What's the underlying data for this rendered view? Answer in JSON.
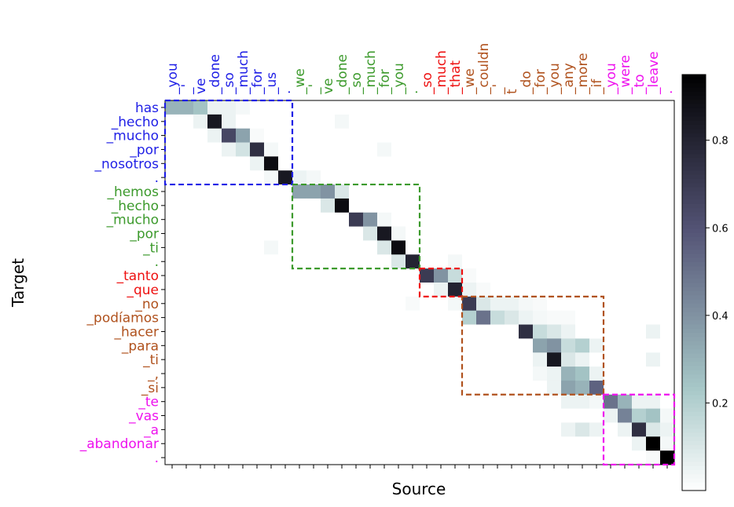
{
  "chart_data": {
    "type": "heatmap",
    "xlabel": "Source",
    "ylabel": "Target",
    "x": [
      "_you",
      "_'",
      "ve",
      "_done",
      "_so",
      "_much",
      "_for",
      "_us",
      ".",
      "_we",
      "_'",
      "ve",
      "_done",
      "_so",
      "_much",
      "_for",
      "_you",
      ".",
      "_so",
      "_much",
      "_that",
      "_we",
      "_couldn",
      "_'",
      "t",
      "_do",
      "_for",
      "_you",
      "_any",
      "_more",
      "_if",
      "_you",
      "_were",
      "_to",
      "_leave",
      "."
    ],
    "y": [
      "has",
      "_hecho",
      "_mucho",
      "_por",
      "_nosotros",
      ".",
      "_hemos",
      "_hecho",
      "_mucho",
      "_por",
      "_ti",
      ".",
      "_tanto",
      "_que",
      "_no",
      "_podíamos",
      "_hacer",
      "_para",
      "_ti",
      "_,",
      "_si",
      "_te",
      "_vas",
      "_a",
      "_abandonar",
      "."
    ],
    "z": [
      [
        0.3,
        0.3,
        0.25,
        0.05,
        0.05,
        0.03,
        0,
        0,
        0,
        0,
        0,
        0,
        0,
        0,
        0,
        0,
        0,
        0,
        0,
        0,
        0,
        0,
        0,
        0,
        0,
        0,
        0,
        0,
        0,
        0,
        0,
        0,
        0,
        0,
        0,
        0
      ],
      [
        0,
        0,
        0.05,
        0.85,
        0.05,
        0,
        0,
        0,
        0,
        0,
        0,
        0,
        0.03,
        0,
        0,
        0,
        0,
        0,
        0,
        0,
        0,
        0,
        0,
        0,
        0,
        0,
        0,
        0,
        0,
        0,
        0,
        0,
        0,
        0,
        0,
        0
      ],
      [
        0,
        0,
        0,
        0.05,
        0.65,
        0.35,
        0.02,
        0,
        0,
        0,
        0,
        0,
        0,
        0,
        0,
        0,
        0,
        0,
        0,
        0,
        0,
        0,
        0,
        0,
        0,
        0,
        0,
        0,
        0,
        0,
        0,
        0,
        0,
        0,
        0,
        0
      ],
      [
        0,
        0,
        0,
        0,
        0.05,
        0.12,
        0.75,
        0.03,
        0,
        0,
        0,
        0,
        0,
        0,
        0,
        0.03,
        0,
        0,
        0,
        0,
        0,
        0,
        0,
        0,
        0,
        0,
        0,
        0,
        0,
        0,
        0,
        0,
        0,
        0,
        0,
        0
      ],
      [
        0,
        0,
        0,
        0,
        0,
        0,
        0.05,
        0.9,
        0,
        0,
        0,
        0,
        0,
        0,
        0,
        0,
        0,
        0,
        0,
        0,
        0,
        0,
        0,
        0,
        0,
        0,
        0,
        0,
        0,
        0,
        0,
        0,
        0,
        0,
        0,
        0
      ],
      [
        0,
        0,
        0,
        0,
        0,
        0,
        0,
        0.03,
        0.85,
        0.05,
        0.03,
        0,
        0,
        0,
        0,
        0,
        0,
        0,
        0,
        0,
        0,
        0,
        0,
        0,
        0,
        0,
        0,
        0,
        0,
        0,
        0,
        0,
        0,
        0,
        0,
        0
      ],
      [
        0,
        0,
        0,
        0,
        0,
        0,
        0,
        0,
        0,
        0.35,
        0.35,
        0.4,
        0.1,
        0,
        0,
        0,
        0,
        0,
        0,
        0,
        0,
        0,
        0,
        0,
        0,
        0,
        0,
        0,
        0,
        0,
        0,
        0,
        0,
        0,
        0,
        0
      ],
      [
        0,
        0,
        0,
        0,
        0,
        0,
        0,
        0,
        0,
        0,
        0,
        0.1,
        0.9,
        0,
        0,
        0,
        0,
        0,
        0,
        0,
        0,
        0,
        0,
        0,
        0,
        0,
        0,
        0,
        0,
        0,
        0,
        0,
        0,
        0,
        0,
        0
      ],
      [
        0,
        0,
        0,
        0,
        0,
        0,
        0,
        0,
        0,
        0,
        0,
        0,
        0,
        0.7,
        0.4,
        0.03,
        0,
        0,
        0,
        0,
        0,
        0,
        0,
        0,
        0,
        0,
        0,
        0,
        0,
        0,
        0,
        0,
        0,
        0,
        0,
        0
      ],
      [
        0,
        0,
        0,
        0,
        0,
        0,
        0,
        0,
        0,
        0,
        0,
        0,
        0,
        0,
        0.1,
        0.85,
        0.03,
        0,
        0,
        0,
        0,
        0,
        0,
        0,
        0,
        0,
        0,
        0,
        0,
        0,
        0,
        0,
        0,
        0,
        0,
        0
      ],
      [
        0,
        0,
        0,
        0,
        0,
        0,
        0,
        0.03,
        0,
        0,
        0,
        0,
        0,
        0,
        0,
        0.1,
        0.9,
        0,
        0,
        0,
        0,
        0,
        0,
        0,
        0,
        0,
        0,
        0,
        0,
        0,
        0,
        0,
        0,
        0,
        0,
        0
      ],
      [
        0,
        0,
        0,
        0,
        0,
        0,
        0,
        0,
        0,
        0,
        0,
        0,
        0,
        0,
        0,
        0,
        0.1,
        0.8,
        0,
        0,
        0.03,
        0,
        0,
        0,
        0,
        0,
        0,
        0,
        0,
        0,
        0,
        0,
        0,
        0,
        0,
        0
      ],
      [
        0,
        0,
        0,
        0,
        0,
        0,
        0,
        0,
        0,
        0,
        0,
        0,
        0,
        0,
        0,
        0,
        0,
        0,
        0.7,
        0.4,
        0.15,
        0.02,
        0,
        0,
        0,
        0,
        0,
        0,
        0,
        0,
        0,
        0,
        0,
        0,
        0,
        0
      ],
      [
        0,
        0,
        0,
        0,
        0,
        0,
        0,
        0,
        0,
        0,
        0,
        0,
        0,
        0,
        0,
        0,
        0,
        0,
        0,
        0.05,
        0.8,
        0.05,
        0.02,
        0,
        0,
        0,
        0,
        0,
        0,
        0,
        0,
        0,
        0,
        0,
        0,
        0
      ],
      [
        0,
        0,
        0,
        0,
        0,
        0,
        0,
        0,
        0,
        0,
        0,
        0,
        0,
        0,
        0,
        0,
        0,
        0.02,
        0,
        0,
        0.03,
        0.7,
        0.1,
        0.05,
        0.05,
        0.03,
        0.02,
        0,
        0,
        0,
        0,
        0,
        0,
        0,
        0,
        0
      ],
      [
        0,
        0,
        0,
        0,
        0,
        0,
        0,
        0,
        0,
        0,
        0,
        0,
        0,
        0,
        0,
        0,
        0,
        0,
        0,
        0,
        0,
        0.2,
        0.5,
        0.15,
        0.1,
        0.05,
        0.03,
        0.02,
        0.02,
        0,
        0,
        0,
        0,
        0,
        0,
        0
      ],
      [
        0,
        0,
        0,
        0,
        0,
        0,
        0,
        0,
        0,
        0,
        0,
        0,
        0,
        0,
        0,
        0,
        0,
        0,
        0,
        0,
        0,
        0,
        0,
        0,
        0,
        0.75,
        0.15,
        0.1,
        0.05,
        0,
        0,
        0,
        0,
        0,
        0.05,
        0
      ],
      [
        0,
        0,
        0,
        0,
        0,
        0,
        0,
        0,
        0,
        0,
        0,
        0,
        0,
        0,
        0,
        0,
        0,
        0,
        0,
        0,
        0,
        0,
        0,
        0,
        0,
        0,
        0.35,
        0.4,
        0.15,
        0.2,
        0.05,
        0,
        0,
        0,
        0,
        0
      ],
      [
        0,
        0,
        0,
        0,
        0,
        0,
        0,
        0,
        0,
        0,
        0,
        0,
        0,
        0,
        0,
        0,
        0,
        0,
        0,
        0,
        0,
        0,
        0,
        0,
        0,
        0,
        0.05,
        0.85,
        0.1,
        0.05,
        0,
        0,
        0,
        0,
        0.05,
        0
      ],
      [
        0,
        0,
        0,
        0,
        0,
        0,
        0,
        0,
        0,
        0,
        0,
        0,
        0,
        0,
        0,
        0,
        0,
        0,
        0,
        0,
        0,
        0,
        0,
        0,
        0,
        0,
        0.03,
        0.05,
        0.3,
        0.25,
        0.05,
        0,
        0,
        0,
        0,
        0
      ],
      [
        0,
        0,
        0,
        0,
        0,
        0,
        0,
        0,
        0,
        0,
        0,
        0,
        0,
        0,
        0,
        0,
        0,
        0,
        0,
        0,
        0,
        0,
        0,
        0,
        0,
        0,
        0,
        0.05,
        0.35,
        0.3,
        0.55,
        0,
        0,
        0,
        0,
        0
      ],
      [
        0,
        0,
        0,
        0,
        0,
        0,
        0,
        0,
        0,
        0,
        0,
        0,
        0,
        0,
        0,
        0,
        0,
        0,
        0,
        0,
        0,
        0,
        0,
        0,
        0,
        0,
        0,
        0,
        0.05,
        0.05,
        0.03,
        0.5,
        0.3,
        0.05,
        0.05,
        0
      ],
      [
        0,
        0,
        0,
        0,
        0,
        0,
        0,
        0,
        0,
        0,
        0,
        0,
        0,
        0,
        0,
        0,
        0,
        0,
        0,
        0,
        0,
        0,
        0,
        0,
        0,
        0,
        0,
        0,
        0,
        0,
        0,
        0.05,
        0.45,
        0.2,
        0.25,
        0.03
      ],
      [
        0,
        0,
        0,
        0,
        0,
        0,
        0,
        0,
        0,
        0,
        0,
        0,
        0,
        0,
        0,
        0,
        0,
        0,
        0,
        0,
        0,
        0,
        0,
        0,
        0,
        0,
        0,
        0,
        0.05,
        0.1,
        0.05,
        0,
        0.05,
        0.75,
        0.1,
        0.05
      ],
      [
        0,
        0,
        0,
        0,
        0,
        0,
        0,
        0,
        0,
        0,
        0,
        0,
        0,
        0,
        0,
        0,
        0,
        0,
        0,
        0,
        0,
        0,
        0,
        0,
        0,
        0,
        0,
        0,
        0,
        0,
        0,
        0,
        0,
        0.05,
        0.95,
        0.03
      ],
      [
        0,
        0,
        0,
        0,
        0,
        0,
        0,
        0,
        0,
        0,
        0,
        0,
        0,
        0,
        0,
        0,
        0,
        0,
        0,
        0,
        0,
        0,
        0,
        0,
        0,
        0,
        0,
        0,
        0,
        0,
        0,
        0,
        0,
        0,
        0.02,
        0.95
      ]
    ],
    "clim": [
      0,
      0.95
    ],
    "cticks": [
      0.2,
      0.4,
      0.6,
      0.8
    ],
    "colormap": "bone_r",
    "groups": [
      {
        "color": "#1f1fe6",
        "rows": [
          0,
          5
        ],
        "cols": [
          0,
          8
        ]
      },
      {
        "color": "#3c9a2c",
        "rows": [
          6,
          11
        ],
        "cols": [
          9,
          17
        ]
      },
      {
        "color": "#ee1111",
        "rows": [
          12,
          13
        ],
        "cols": [
          18,
          20
        ]
      },
      {
        "color": "#b0521e",
        "rows": [
          14,
          20
        ],
        "cols": [
          21,
          30
        ]
      },
      {
        "color": "#ee11ee",
        "rows": [
          21,
          25
        ],
        "cols": [
          31,
          35
        ]
      }
    ]
  }
}
